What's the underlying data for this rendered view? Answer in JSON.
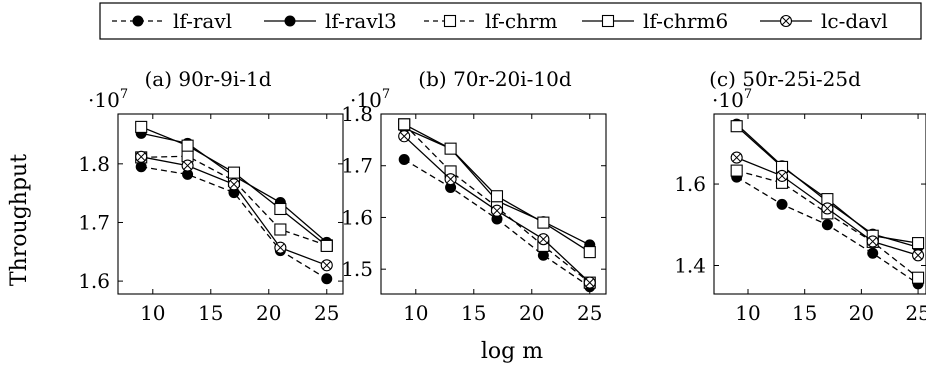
{
  "figure": {
    "ylabel": "Throughput",
    "xlabel": "log m",
    "legend": {
      "position": "top",
      "entries": [
        {
          "label": "lf-ravl",
          "dashed": true,
          "marker": "filled-circle"
        },
        {
          "label": "lf-ravl3",
          "dashed": false,
          "marker": "filled-circle"
        },
        {
          "label": "lf-chrm",
          "dashed": true,
          "marker": "open-square"
        },
        {
          "label": "lf-chrm6",
          "dashed": false,
          "marker": "open-square"
        },
        {
          "label": "lc-davl",
          "dashed": false,
          "marker": "circle-cross"
        }
      ]
    }
  },
  "chart_data": [
    {
      "type": "line",
      "title": "(a) 90r-9i-1d",
      "y_multiplier": "·10^7",
      "x": [
        9,
        13,
        17,
        21,
        25
      ],
      "xlim": [
        7,
        26.4
      ],
      "ylim": [
        1.578,
        1.885
      ],
      "xticks": [
        10,
        15,
        20,
        25
      ],
      "yticks": [
        1.6,
        1.7,
        1.8
      ],
      "yticklabels": [
        "1.6",
        "1.7",
        "1.8"
      ],
      "grid": false,
      "series": [
        {
          "name": "lf-ravl",
          "values": [
            1.795,
            1.782,
            1.751,
            1.652,
            1.604
          ]
        },
        {
          "name": "lf-ravl3",
          "values": [
            1.852,
            1.835,
            1.779,
            1.734,
            1.666
          ]
        },
        {
          "name": "lf-chrm",
          "values": [
            1.811,
            1.813,
            1.771,
            1.688,
            1.661
          ]
        },
        {
          "name": "lf-chrm6",
          "values": [
            1.863,
            1.831,
            1.785,
            1.723,
            1.66
          ]
        },
        {
          "name": "lc-davl",
          "values": [
            1.812,
            1.797,
            1.765,
            1.657,
            1.627
          ]
        }
      ]
    },
    {
      "type": "line",
      "title": "(b) 70r-20i-10d",
      "y_multiplier": "·10^7",
      "x": [
        9,
        13,
        17,
        21,
        25
      ],
      "xlim": [
        7,
        26.4
      ],
      "ylim": [
        1.452,
        1.8
      ],
      "xticks": [
        10,
        15,
        20,
        25
      ],
      "yticks": [
        1.5,
        1.6,
        1.7,
        1.8
      ],
      "yticklabels": [
        "1.5",
        "1.6",
        "1.7",
        "1.8"
      ],
      "grid": false,
      "series": [
        {
          "name": "lf-ravl",
          "values": [
            1.712,
            1.658,
            1.597,
            1.527,
            1.466
          ]
        },
        {
          "name": "lf-ravl3",
          "values": [
            1.773,
            1.733,
            1.632,
            1.592,
            1.547
          ]
        },
        {
          "name": "lf-chrm",
          "values": [
            1.78,
            1.689,
            1.62,
            1.545,
            1.474
          ]
        },
        {
          "name": "lf-chrm6",
          "values": [
            1.78,
            1.733,
            1.641,
            1.59,
            1.533
          ]
        },
        {
          "name": "lc-davl",
          "values": [
            1.757,
            1.674,
            1.613,
            1.558,
            1.474
          ]
        }
      ]
    },
    {
      "type": "line",
      "title": "(c) 50r-25i-25d",
      "y_multiplier": "·10^7",
      "x": [
        9,
        13,
        17,
        21,
        25
      ],
      "xlim": [
        7,
        25.7
      ],
      "ylim": [
        1.33,
        1.772
      ],
      "xticks": [
        10,
        15,
        20,
        25
      ],
      "yticks": [
        1.4,
        1.6
      ],
      "yticklabels": [
        "1.4",
        "1.6"
      ],
      "grid": false,
      "series": [
        {
          "name": "lf-ravl",
          "values": [
            1.617,
            1.55,
            1.5,
            1.43,
            1.355
          ]
        },
        {
          "name": "lf-ravl3",
          "values": [
            1.747,
            1.645,
            1.557,
            1.477,
            1.445
          ]
        },
        {
          "name": "lf-chrm",
          "values": [
            1.633,
            1.603,
            1.528,
            1.458,
            1.37
          ]
        },
        {
          "name": "lf-chrm6",
          "values": [
            1.742,
            1.642,
            1.563,
            1.473,
            1.455
          ]
        },
        {
          "name": "lc-davl",
          "values": [
            1.665,
            1.62,
            1.54,
            1.459,
            1.425
          ]
        }
      ]
    }
  ]
}
